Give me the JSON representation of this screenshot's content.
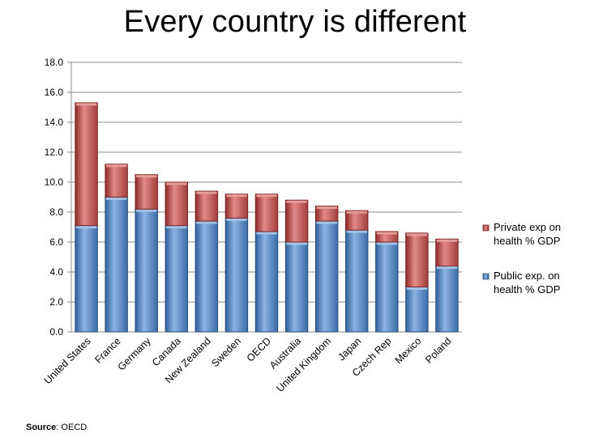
{
  "slide": {
    "title": "Every country is different",
    "source_label": "Source",
    "source_value": "OECD"
  },
  "chart_data": {
    "type": "bar",
    "stacked": true,
    "categories": [
      "United States",
      "France",
      "Germany",
      "Canada",
      "New Zealand",
      "Sweden",
      "OECD",
      "Australia",
      "United Kingdom",
      "Japan",
      "Czech Rep",
      "Mexico",
      "Poland"
    ],
    "series": [
      {
        "name": "Public exp. on health % GDP",
        "color": "#4F81BD",
        "values": [
          7.1,
          9.0,
          8.2,
          7.1,
          7.4,
          7.6,
          6.7,
          6.0,
          7.4,
          6.8,
          6.0,
          3.0,
          4.4
        ]
      },
      {
        "name": "Private exp on health % GDP",
        "color": "#C0504D",
        "values": [
          8.2,
          2.2,
          2.3,
          2.9,
          2.0,
          1.6,
          2.5,
          2.8,
          1.0,
          1.3,
          0.7,
          3.6,
          1.8
        ]
      }
    ],
    "ylim": [
      0,
      18
    ],
    "yticks": [
      "0.0",
      "2.0",
      "4.0",
      "6.0",
      "8.0",
      "10.0",
      "12.0",
      "14.0",
      "16.0",
      "18.0"
    ],
    "grid": true,
    "legend_position": "right",
    "xlabel": "",
    "ylabel": ""
  }
}
